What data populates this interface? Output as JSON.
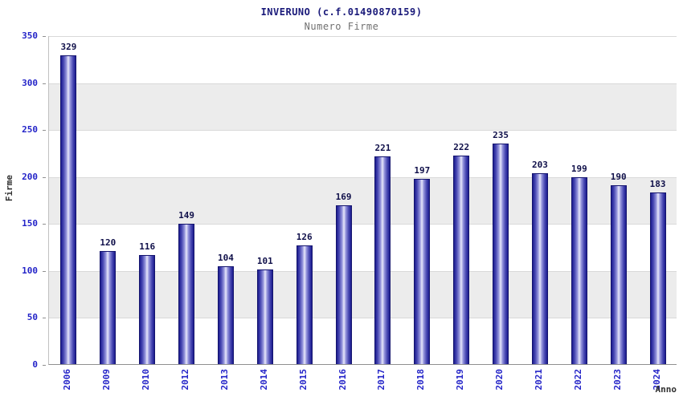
{
  "chart_data": {
    "type": "bar",
    "title": "INVERUNO (c.f.01490870159)",
    "subtitle": "Numero Firme",
    "xlabel": "Anno",
    "ylabel": "Firme",
    "categories": [
      "2006",
      "2009",
      "2010",
      "2012",
      "2013",
      "2014",
      "2015",
      "2016",
      "2017",
      "2018",
      "2019",
      "2020",
      "2021",
      "2022",
      "2023",
      "2024"
    ],
    "values": [
      329,
      120,
      116,
      149,
      104,
      101,
      126,
      169,
      221,
      197,
      222,
      235,
      203,
      199,
      190,
      183
    ],
    "ylim": [
      0,
      350
    ],
    "yticks": [
      0,
      50,
      100,
      150,
      200,
      250,
      300,
      350
    ],
    "grid": true,
    "legend": "none",
    "layout": {
      "bands_alternating": true
    },
    "colors": {
      "bar_edge": "#1b1b8e",
      "bar_highlight": "#e8e8fb",
      "axis_tick_text": "#2424c8",
      "value_label_text": "#10104a",
      "title_text": "#1a1a7a",
      "subtitle_text": "#707070",
      "band_gray": "#ececec",
      "grid_line": "#d9d9d9"
    }
  }
}
